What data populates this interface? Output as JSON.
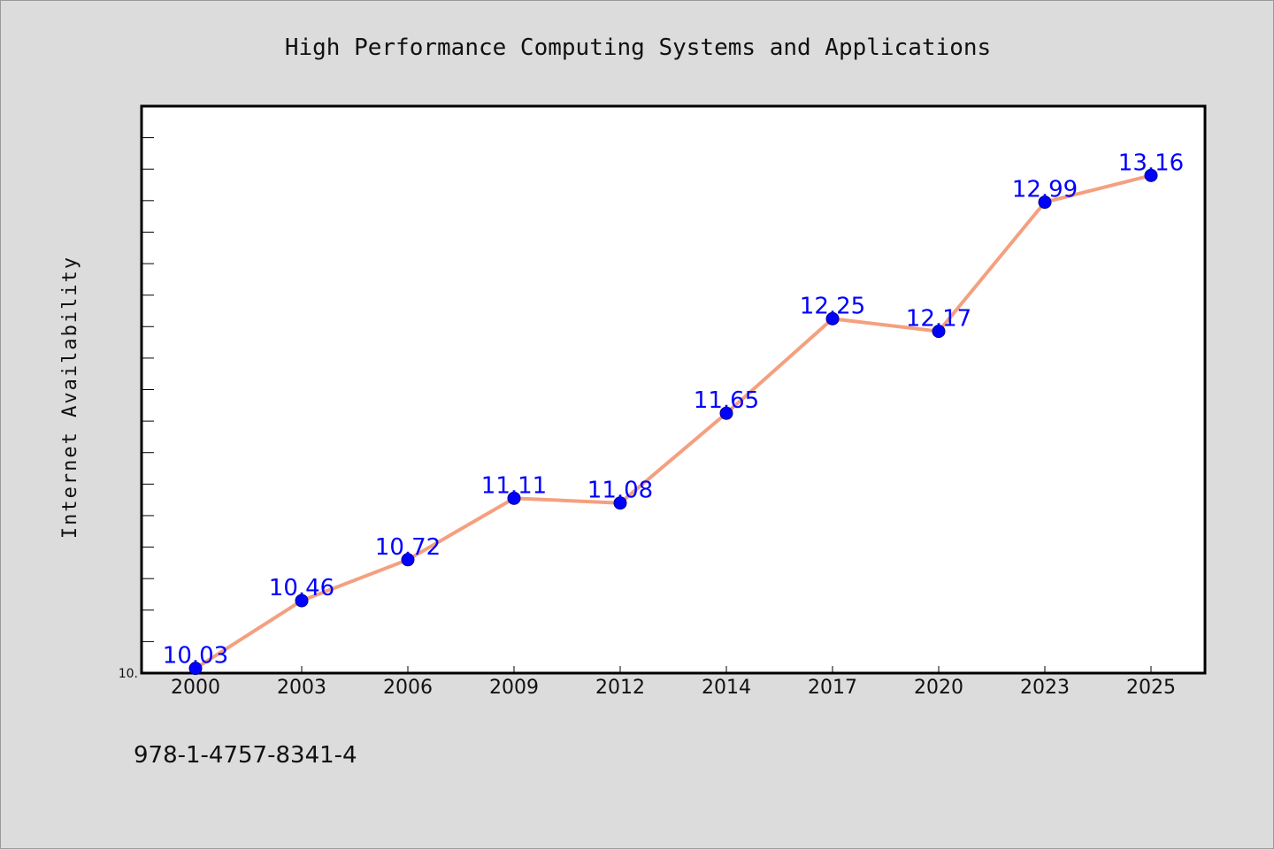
{
  "chart_data": {
    "type": "line",
    "title": "High Performance Computing Systems and Applications",
    "ylabel": "Internet Availability",
    "xlabel": "",
    "categories": [
      "2000",
      "2003",
      "2006",
      "2009",
      "2012",
      "2014",
      "2017",
      "2020",
      "2023",
      "2025"
    ],
    "values": [
      10.03,
      10.46,
      10.72,
      11.11,
      11.08,
      11.65,
      12.25,
      12.17,
      12.99,
      13.16
    ],
    "data_labels": [
      "10.03",
      "10.46",
      "10.72",
      "11.11",
      "11.08",
      "11.65",
      "12.25",
      "12.17",
      "12.99",
      "13.16"
    ],
    "ylim": [
      10.0,
      13.6
    ],
    "y_tick_label": "10.",
    "grid": false,
    "line_color": "#f4a07f",
    "marker_color": "#0000ff"
  },
  "footer": {
    "text": "978-1-4757-8341-4"
  }
}
